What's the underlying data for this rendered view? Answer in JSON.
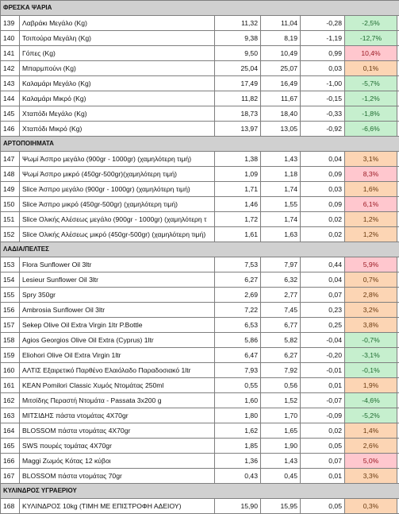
{
  "sections": [
    {
      "title": "ΦΡΕΣΚΑ ΨΑΡΙΑ",
      "rows": [
        {
          "id": "139",
          "name": "Λαβράκι Μεγάλο (Kg)",
          "old": "11,32",
          "new": "11,04",
          "diff": "-0,28",
          "pct": "-2,5%",
          "tone": "green"
        },
        {
          "id": "140",
          "name": "Τσιπούρα Μεγάλη (Kg)",
          "old": "9,38",
          "new": "8,19",
          "diff": "-1,19",
          "pct": "-12,7%",
          "tone": "green"
        },
        {
          "id": "141",
          "name": "Γόπες (Kg)",
          "old": "9,50",
          "new": "10,49",
          "diff": "0,99",
          "pct": "10,4%",
          "tone": "red"
        },
        {
          "id": "142",
          "name": "Μπαρμπούνι (Kg)",
          "old": "25,04",
          "new": "25,07",
          "diff": "0,03",
          "pct": "0,1%",
          "tone": "orange"
        },
        {
          "id": "143",
          "name": "Καλαμάρι Μεγάλο (Kg)",
          "old": "17,49",
          "new": "16,49",
          "diff": "-1,00",
          "pct": "-5,7%",
          "tone": "green"
        },
        {
          "id": "144",
          "name": "Καλαμάρι Μικρό (Kg)",
          "old": "11,82",
          "new": "11,67",
          "diff": "-0,15",
          "pct": "-1,2%",
          "tone": "green"
        },
        {
          "id": "145",
          "name": "Χταπόδι Μεγάλο (Kg)",
          "old": "18,73",
          "new": "18,40",
          "diff": "-0,33",
          "pct": "-1,8%",
          "tone": "green"
        },
        {
          "id": "146",
          "name": "Χταπόδι Μικρό (Kg)",
          "old": "13,97",
          "new": "13,05",
          "diff": "-0,92",
          "pct": "-6,6%",
          "tone": "green"
        }
      ]
    },
    {
      "title": "ΑΡΤΟΠΟΙΗΜΑΤΑ",
      "rows": [
        {
          "id": "147",
          "name": "Ψωμί Άσπρο μεγάλο (900gr - 1000gr) (χαμηλότερη τιμή)",
          "old": "1,38",
          "new": "1,43",
          "diff": "0,04",
          "pct": "3,1%",
          "tone": "orange"
        },
        {
          "id": "148",
          "name": "Ψωμί Άσπρο μικρό (450gr-500gr)(χαμηλότερη τιμή)",
          "old": "1,09",
          "new": "1,18",
          "diff": "0,09",
          "pct": "8,3%",
          "tone": "red"
        },
        {
          "id": "149",
          "name": "Slice Άσπρο μεγάλο (900gr - 1000gr) (χαμηλότερη τιμή)",
          "old": "1,71",
          "new": "1,74",
          "diff": "0,03",
          "pct": "1,6%",
          "tone": "orange"
        },
        {
          "id": "150",
          "name": "Slice Άσπρο μικρό  (450gr-500gr) (χαμηλότερη τιμή)",
          "old": "1,46",
          "new": "1,55",
          "diff": "0,09",
          "pct": "6,1%",
          "tone": "red"
        },
        {
          "id": "151",
          "name": "Slice Ολικής Αλέσεως μεγάλο (900gr - 1000gr) (χαμηλότερη τ",
          "old": "1,72",
          "new": "1,74",
          "diff": "0,02",
          "pct": "1,2%",
          "tone": "orange"
        },
        {
          "id": "152",
          "name": "Slice Ολικής Αλέσεως μικρό (450gr-500gr) (χαμηλότερη τιμή)",
          "old": "1,61",
          "new": "1,63",
          "diff": "0,02",
          "pct": "1,2%",
          "tone": "orange"
        }
      ]
    },
    {
      "title": "ΛΑΔΙΑ/ΠΕΛΤΕΣ",
      "rows": [
        {
          "id": "153",
          "name": "Flora Sunflower Oil 3ltr",
          "old": "7,53",
          "new": "7,97",
          "diff": "0,44",
          "pct": "5,9%",
          "tone": "red"
        },
        {
          "id": "154",
          "name": "Lesieur Sunflower Oil 3ltr",
          "old": "6,27",
          "new": "6,32",
          "diff": "0,04",
          "pct": "0,7%",
          "tone": "orange"
        },
        {
          "id": "155",
          "name": "Spry 350gr",
          "old": "2,69",
          "new": "2,77",
          "diff": "0,07",
          "pct": "2,8%",
          "tone": "orange"
        },
        {
          "id": "156",
          "name": "Ambrosia Sunflower Oil 3ltr",
          "old": "7,22",
          "new": "7,45",
          "diff": "0,23",
          "pct": "3,2%",
          "tone": "orange"
        },
        {
          "id": "157",
          "name": "Sekep Olive Oil Extra Virgin 1ltr P.Bottle",
          "old": "6,53",
          "new": "6,77",
          "diff": "0,25",
          "pct": "3,8%",
          "tone": "orange"
        },
        {
          "id": "158",
          "name": "Agios Georgios Olive Oil Extra (Cyprus) 1ltr",
          "old": "5,86",
          "new": "5,82",
          "diff": "-0,04",
          "pct": "-0,7%",
          "tone": "green"
        },
        {
          "id": "159",
          "name": "Eliohori Olive Oil Extra Virgin 1ltr",
          "old": "6,47",
          "new": "6,27",
          "diff": "-0,20",
          "pct": "-3,1%",
          "tone": "green"
        },
        {
          "id": "160",
          "name": "ΑΛΤΙΣ Εξαιρετικό Παρθένο Ελαιόλαδο Παραδοσιακό 1ltr",
          "old": "7,93",
          "new": "7,92",
          "diff": "-0,01",
          "pct": "-0,1%",
          "tone": "green"
        },
        {
          "id": "161",
          "name": "KEAN Pomilori Classic Χυμός Ντομάτας 250ml",
          "old": "0,55",
          "new": "0,56",
          "diff": "0,01",
          "pct": "1,9%",
          "tone": "orange"
        },
        {
          "id": "162",
          "name": "Μιτσίδης Περαστή Ντομάτα - Passata  3x200 g",
          "old": "1,60",
          "new": "1,52",
          "diff": "-0,07",
          "pct": "-4,6%",
          "tone": "green"
        },
        {
          "id": "163",
          "name": "ΜΙΤΣΙΔΗΣ πάστα ντομάτας 4X70gr",
          "old": "1,80",
          "new": "1,70",
          "diff": "-0,09",
          "pct": "-5,2%",
          "tone": "green"
        },
        {
          "id": "164",
          "name": "BLOSSOM πάστα ντομάτας 4X70gr",
          "old": "1,62",
          "new": "1,65",
          "diff": "0,02",
          "pct": "1,4%",
          "tone": "orange"
        },
        {
          "id": "165",
          "name": "SWS πουρές τομάτας 4X70gr",
          "old": "1,85",
          "new": "1,90",
          "diff": "0,05",
          "pct": "2,6%",
          "tone": "orange"
        },
        {
          "id": "166",
          "name": "Maggi Ζωμός Κότας 12 κύβοι",
          "old": "1,36",
          "new": "1,43",
          "diff": "0,07",
          "pct": "5,0%",
          "tone": "red"
        },
        {
          "id": "167",
          "name": "BLOSSOM πάστα ντομάτας 70gr",
          "old": "0,43",
          "new": "0,45",
          "diff": "0,01",
          "pct": "3,3%",
          "tone": "orange"
        }
      ]
    },
    {
      "title": "ΚΥΛΙΝΔΡΟΣ ΥΓΡΑΕΡΙΟΥ",
      "rows": [
        {
          "id": "168",
          "name": "ΚΥΛΙΝΔΡΟΣ 10kg (ΤΙΜΗ ΜΕ ΕΠΙΣΤΡΟΦΗ ΑΔΕΙΟΥ)",
          "old": "15,90",
          "new": "15,95",
          "diff": "0,05",
          "pct": "0,3%",
          "tone": "orange"
        }
      ]
    }
  ],
  "colors": {
    "green": "#c6efce",
    "red": "#ffc7ce",
    "orange": "#fcd5b4",
    "section": "#d0d0d0"
  }
}
